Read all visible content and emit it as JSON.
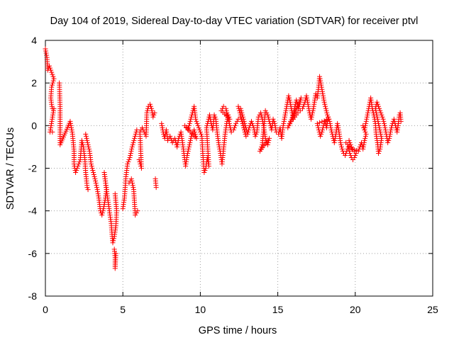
{
  "chart_data": {
    "type": "scatter",
    "title": "Day 104 of 2019, Sidereal Day-to-day VTEC variation (SDTVAR) for receiver ptvl",
    "xlabel": "GPS time / hours",
    "ylabel": "SDTVAR / TECUs",
    "xlim": [
      0,
      25
    ],
    "ylim": [
      -8,
      4
    ],
    "xticks": [
      0,
      5,
      10,
      15,
      20,
      25
    ],
    "yticks": [
      -8,
      -6,
      -4,
      -2,
      0,
      2,
      4
    ],
    "xtick_labels": [
      "0",
      "5",
      "10",
      "15",
      "20",
      "25"
    ],
    "ytick_labels": [
      "-8",
      "-6",
      "-4",
      "-2",
      "0",
      "2",
      "4"
    ],
    "grid": true,
    "marker": "+",
    "color": "#ff0000",
    "series": [
      {
        "name": "SDTVAR",
        "trace": [
          [
            0.0,
            3.6
          ],
          [
            0.1,
            3.2
          ],
          [
            0.15,
            2.6
          ],
          [
            0.25,
            2.8
          ],
          [
            0.35,
            2.6
          ],
          [
            0.45,
            2.4
          ],
          [
            0.55,
            2.2
          ],
          [
            0.4,
            1.8
          ],
          [
            0.35,
            1.3
          ],
          [
            0.4,
            1.0
          ],
          [
            0.45,
            0.8
          ],
          [
            0.55,
            0.8
          ],
          [
            0.3,
            -0.3
          ],
          [
            0.45,
            -0.3
          ],
          [
            0.9,
            2.0
          ],
          [
            0.95,
            0.9
          ],
          [
            0.95,
            -0.9
          ],
          [
            1.6,
            0.2
          ],
          [
            1.75,
            -0.4
          ],
          [
            1.85,
            -1.2
          ],
          [
            1.85,
            -1.8
          ],
          [
            1.95,
            -2.2
          ],
          [
            2.1,
            -1.9
          ],
          [
            2.25,
            -1.6
          ],
          [
            2.35,
            -0.7
          ],
          [
            2.45,
            -1.0
          ],
          [
            2.55,
            -1.6
          ],
          [
            2.6,
            -2.2
          ],
          [
            2.7,
            -2.9
          ],
          [
            2.75,
            -3.0
          ],
          [
            2.6,
            -0.4
          ],
          [
            2.75,
            -0.9
          ],
          [
            2.85,
            -1.2
          ],
          [
            2.95,
            -1.8
          ],
          [
            3.2,
            -2.5
          ],
          [
            3.35,
            -3.0
          ],
          [
            3.45,
            -3.4
          ],
          [
            3.55,
            -4.0
          ],
          [
            3.65,
            -4.2
          ],
          [
            3.75,
            -3.9
          ],
          [
            3.85,
            -3.5
          ],
          [
            3.95,
            -3.0
          ],
          [
            3.8,
            -2.2
          ],
          [
            3.9,
            -2.8
          ],
          [
            4.15,
            -4.1
          ],
          [
            4.25,
            -4.6
          ],
          [
            4.3,
            -5.1
          ],
          [
            4.35,
            -5.5
          ],
          [
            4.45,
            -5.2
          ],
          [
            4.55,
            -4.7
          ],
          [
            4.6,
            -4.0
          ],
          [
            4.5,
            -3.2
          ],
          [
            4.45,
            -5.8
          ],
          [
            4.5,
            -6.2
          ],
          [
            4.5,
            -6.7
          ],
          [
            4.55,
            -6.0
          ],
          [
            5.0,
            -3.9
          ],
          [
            5.1,
            -3.4
          ],
          [
            5.15,
            -2.9
          ],
          [
            5.2,
            -2.4
          ],
          [
            5.3,
            -1.8
          ],
          [
            5.45,
            -1.5
          ],
          [
            5.6,
            -1.0
          ],
          [
            5.75,
            -0.6
          ],
          [
            5.9,
            -0.2
          ],
          [
            5.4,
            -2.7
          ],
          [
            5.55,
            -2.5
          ],
          [
            5.7,
            -3.0
          ],
          [
            5.8,
            -4.2
          ],
          [
            5.95,
            -4.0
          ],
          [
            6.05,
            -1.6
          ],
          [
            6.2,
            -2.0
          ],
          [
            6.1,
            -0.3
          ],
          [
            6.25,
            -0.1
          ],
          [
            6.5,
            -0.5
          ],
          [
            6.55,
            0.6
          ],
          [
            6.65,
            0.9
          ],
          [
            6.75,
            1.0
          ],
          [
            6.85,
            0.8
          ],
          [
            6.95,
            0.4
          ],
          [
            7.05,
            0.6
          ],
          [
            7.1,
            -2.5
          ],
          [
            7.15,
            -2.9
          ],
          [
            7.5,
            0.1
          ],
          [
            7.6,
            -0.3
          ],
          [
            7.7,
            -0.6
          ],
          [
            7.8,
            -0.2
          ],
          [
            7.9,
            -0.7
          ],
          [
            8.05,
            -0.5
          ],
          [
            8.2,
            -0.8
          ],
          [
            8.35,
            -0.6
          ],
          [
            8.5,
            -1.0
          ],
          [
            8.6,
            -0.6
          ],
          [
            8.75,
            -0.3
          ],
          [
            8.85,
            -0.8
          ],
          [
            9.05,
            -1.9
          ],
          [
            9.15,
            -1.4
          ],
          [
            9.3,
            -0.9
          ],
          [
            9.45,
            -0.4
          ],
          [
            9.6,
            -0.2
          ],
          [
            9.75,
            -0.6
          ],
          [
            9.0,
            0.0
          ],
          [
            9.2,
            -0.2
          ],
          [
            9.6,
            0.9
          ],
          [
            9.7,
            0.3
          ],
          [
            10.1,
            -0.5
          ],
          [
            10.15,
            -1.2
          ],
          [
            10.25,
            -2.2
          ],
          [
            10.35,
            -2.0
          ],
          [
            10.45,
            -1.5
          ],
          [
            10.55,
            -1.9
          ],
          [
            10.4,
            -0.1
          ],
          [
            10.6,
            0.5
          ],
          [
            10.7,
            0.1
          ],
          [
            10.8,
            -0.2
          ],
          [
            10.9,
            0.5
          ],
          [
            11.0,
            0.3
          ],
          [
            11.1,
            -0.4
          ],
          [
            11.2,
            -0.9
          ],
          [
            11.3,
            -1.3
          ],
          [
            11.4,
            -1.8
          ],
          [
            11.5,
            -1.1
          ],
          [
            11.6,
            -0.4
          ],
          [
            11.7,
            0.1
          ],
          [
            11.8,
            0.5
          ],
          [
            11.9,
            0.3
          ],
          [
            11.35,
            0.7
          ],
          [
            11.5,
            0.9
          ],
          [
            11.65,
            0.8
          ],
          [
            12.0,
            -0.3
          ],
          [
            12.15,
            -0.2
          ],
          [
            12.3,
            0.1
          ],
          [
            12.45,
            0.3
          ],
          [
            12.6,
            0.4
          ],
          [
            12.7,
            0.2
          ],
          [
            12.85,
            -0.2
          ],
          [
            12.95,
            -0.5
          ],
          [
            12.45,
            0.9
          ],
          [
            12.6,
            0.8
          ],
          [
            13.05,
            -0.4
          ],
          [
            13.15,
            -0.1
          ],
          [
            13.3,
            0.2
          ],
          [
            13.45,
            -0.1
          ],
          [
            13.55,
            -0.5
          ],
          [
            13.65,
            -0.3
          ],
          [
            13.75,
            0.4
          ],
          [
            13.9,
            0.6
          ],
          [
            14.0,
            0.3
          ],
          [
            14.1,
            -0.1
          ],
          [
            14.2,
            -0.6
          ],
          [
            14.35,
            -0.9
          ],
          [
            14.45,
            -0.6
          ],
          [
            13.85,
            -1.2
          ],
          [
            14.0,
            -0.9
          ],
          [
            14.2,
            0.7
          ],
          [
            14.35,
            0.5
          ],
          [
            14.6,
            -0.2
          ],
          [
            14.7,
            0.3
          ],
          [
            14.8,
            0.1
          ],
          [
            14.9,
            -0.3
          ],
          [
            15.05,
            -0.4
          ],
          [
            15.15,
            -0.1
          ],
          [
            15.25,
            -0.6
          ],
          [
            15.35,
            0.0
          ],
          [
            15.5,
            0.6
          ],
          [
            15.6,
            1.0
          ],
          [
            15.7,
            1.4
          ],
          [
            15.8,
            1.1
          ],
          [
            15.9,
            0.7
          ],
          [
            16.0,
            0.3
          ],
          [
            16.1,
            0.9
          ],
          [
            16.2,
            1.2
          ],
          [
            16.35,
            0.8
          ],
          [
            16.5,
            1.3
          ],
          [
            15.65,
            -0.1
          ],
          [
            15.85,
            0.2
          ],
          [
            16.1,
            0.4
          ],
          [
            16.3,
            0.6
          ],
          [
            16.6,
            0.8
          ],
          [
            16.75,
            1.1
          ],
          [
            16.85,
            1.4
          ],
          [
            16.95,
            1.0
          ],
          [
            17.05,
            0.6
          ],
          [
            17.15,
            0.3
          ],
          [
            17.3,
            0.8
          ],
          [
            17.45,
            1.5
          ],
          [
            17.55,
            1.3
          ],
          [
            17.65,
            1.9
          ],
          [
            17.7,
            2.3
          ],
          [
            17.8,
            1.9
          ],
          [
            17.9,
            1.5
          ],
          [
            18.0,
            1.1
          ],
          [
            18.1,
            0.8
          ],
          [
            18.2,
            0.5
          ],
          [
            18.3,
            0.3
          ],
          [
            17.55,
            0.1
          ],
          [
            17.65,
            -0.2
          ],
          [
            17.75,
            -0.5
          ],
          [
            17.85,
            -0.3
          ],
          [
            17.95,
            0.0
          ],
          [
            18.05,
            0.2
          ],
          [
            18.15,
            -0.1
          ],
          [
            18.25,
            0.4
          ],
          [
            18.35,
            0.2
          ],
          [
            18.45,
            -0.2
          ],
          [
            18.55,
            -0.5
          ],
          [
            18.65,
            -0.8
          ],
          [
            18.75,
            -0.4
          ],
          [
            18.85,
            0.1
          ],
          [
            18.95,
            -0.3
          ],
          [
            19.05,
            -0.8
          ],
          [
            19.15,
            -1.1
          ],
          [
            19.25,
            -1.3
          ],
          [
            19.35,
            -1.4
          ],
          [
            19.45,
            -1.2
          ],
          [
            19.55,
            -1.0
          ],
          [
            19.65,
            -1.3
          ],
          [
            19.75,
            -1.5
          ],
          [
            19.85,
            -1.6
          ],
          [
            19.95,
            -1.5
          ],
          [
            20.05,
            -1.3
          ],
          [
            19.4,
            -0.8
          ],
          [
            19.6,
            -0.7
          ],
          [
            19.8,
            -1.1
          ],
          [
            20.2,
            -1.2
          ],
          [
            20.3,
            -1.0
          ],
          [
            20.4,
            -0.8
          ],
          [
            20.5,
            -1.1
          ],
          [
            20.6,
            -0.7
          ],
          [
            20.7,
            -0.4
          ],
          [
            20.5,
            0.0
          ],
          [
            20.6,
            -0.2
          ],
          [
            21.0,
            1.3
          ],
          [
            21.1,
            0.8
          ],
          [
            21.2,
            0.5
          ],
          [
            21.3,
            0.1
          ],
          [
            21.35,
            -0.4
          ],
          [
            21.45,
            -0.9
          ],
          [
            21.5,
            -1.3
          ],
          [
            21.6,
            -1.1
          ],
          [
            21.7,
            -0.6
          ],
          [
            21.3,
            0.8
          ],
          [
            21.4,
            1.1
          ],
          [
            21.5,
            0.9
          ],
          [
            21.65,
            0.6
          ],
          [
            21.8,
            0.3
          ],
          [
            21.9,
            0.0
          ],
          [
            22.0,
            -0.4
          ],
          [
            22.1,
            -0.8
          ],
          [
            22.2,
            -0.6
          ],
          [
            22.3,
            -0.2
          ],
          [
            22.4,
            0.1
          ],
          [
            22.5,
            0.3
          ],
          [
            22.6,
            0.0
          ],
          [
            22.7,
            -0.3
          ],
          [
            22.8,
            0.2
          ],
          [
            22.85,
            0.5
          ],
          [
            22.9,
            0.6
          ],
          [
            22.95,
            0.2
          ]
        ]
      }
    ]
  }
}
